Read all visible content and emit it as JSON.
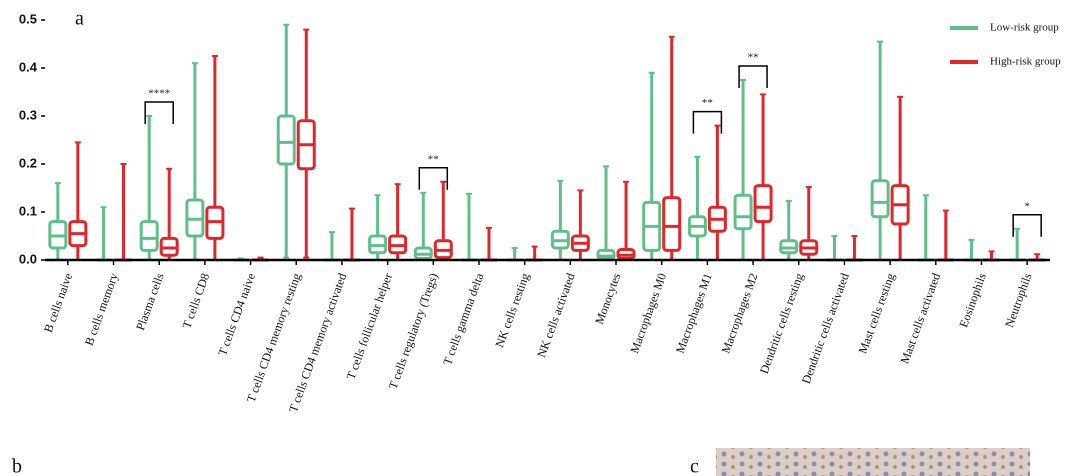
{
  "chart_data": {
    "type": "box",
    "panel_labels": [
      "a",
      "b",
      "c"
    ],
    "categories": [
      "B cells naive",
      "B cells memory",
      "Plasma cells",
      "T cells CD8",
      "T cells CD4 naive",
      "T cells CD4 memory resting",
      "T cells CD4 memory activated",
      "T cells follicular helper",
      "T cells regulatory (Tregs)",
      "T cells gamma delta",
      "NK cells resting",
      "NK cells activated",
      "Monocytes",
      "Macrophages M0",
      "Macrophages M1",
      "Macrophages M2",
      "Dendritic cells resting",
      "Dendritic cells activated",
      "Mast cells resting",
      "Mast cells activated",
      "Eosinophils",
      "Neutrophils"
    ],
    "significance": [
      null,
      null,
      "****",
      null,
      null,
      null,
      null,
      null,
      "**",
      null,
      null,
      null,
      null,
      null,
      "**",
      "**",
      null,
      null,
      null,
      null,
      null,
      "*"
    ],
    "series": [
      {
        "name": "Low-risk group",
        "color": "#5fbf8a",
        "values": [
          [
            0,
            0.025,
            0.05,
            0.08,
            0.16
          ],
          [
            0,
            0,
            0,
            0,
            0.11
          ],
          [
            0,
            0.02,
            0.045,
            0.08,
            0.3
          ],
          [
            0,
            0.05,
            0.085,
            0.125,
            0.41
          ],
          [
            0,
            0,
            0,
            0,
            0.003
          ],
          [
            0.005,
            0.2,
            0.245,
            0.3,
            0.49
          ],
          [
            0,
            0,
            0,
            0,
            0.058
          ],
          [
            0,
            0.015,
            0.03,
            0.05,
            0.135
          ],
          [
            0,
            0.003,
            0.012,
            0.025,
            0.14
          ],
          [
            0,
            0,
            0,
            0,
            0.138
          ],
          [
            0,
            0,
            0,
            0,
            0.025
          ],
          [
            0,
            0.025,
            0.04,
            0.06,
            0.165
          ],
          [
            0,
            0.002,
            0.008,
            0.02,
            0.195
          ],
          [
            0,
            0.02,
            0.07,
            0.12,
            0.39
          ],
          [
            0,
            0.05,
            0.07,
            0.09,
            0.215
          ],
          [
            0,
            0.065,
            0.09,
            0.135,
            0.375
          ],
          [
            0,
            0.015,
            0.025,
            0.04,
            0.123
          ],
          [
            0,
            0,
            0,
            0,
            0.05
          ],
          [
            0,
            0.09,
            0.12,
            0.165,
            0.455
          ],
          [
            0,
            0,
            0,
            0,
            0.135
          ],
          [
            0,
            0,
            0,
            0,
            0.042
          ],
          [
            0,
            0,
            0,
            0,
            0.065
          ]
        ]
      },
      {
        "name": "High-risk group",
        "color": "#e0262b",
        "values": [
          [
            0,
            0.03,
            0.055,
            0.08,
            0.245
          ],
          [
            0,
            0,
            0,
            0,
            0.2
          ],
          [
            0,
            0.01,
            0.025,
            0.045,
            0.19
          ],
          [
            0,
            0.045,
            0.08,
            0.11,
            0.425
          ],
          [
            0,
            0,
            0,
            0,
            0.005
          ],
          [
            0.005,
            0.19,
            0.24,
            0.29,
            0.48
          ],
          [
            0,
            0,
            0,
            0,
            0.107
          ],
          [
            0,
            0.015,
            0.03,
            0.05,
            0.158
          ],
          [
            0,
            0.005,
            0.02,
            0.04,
            0.163
          ],
          [
            0,
            0,
            0,
            0,
            0.067
          ],
          [
            0,
            0,
            0,
            0,
            0.028
          ],
          [
            0,
            0.02,
            0.035,
            0.05,
            0.145
          ],
          [
            0,
            0.003,
            0.01,
            0.022,
            0.163
          ],
          [
            0,
            0.02,
            0.07,
            0.13,
            0.465
          ],
          [
            0,
            0.06,
            0.085,
            0.11,
            0.28
          ],
          [
            0,
            0.08,
            0.11,
            0.155,
            0.345
          ],
          [
            0,
            0.012,
            0.025,
            0.04,
            0.152
          ],
          [
            0,
            0,
            0,
            0,
            0.05
          ],
          [
            0,
            0.075,
            0.115,
            0.155,
            0.34
          ],
          [
            0,
            0,
            0,
            0,
            0.103
          ],
          [
            0,
            0,
            0,
            0,
            0.018
          ],
          [
            0,
            0,
            0,
            0,
            0.012
          ]
        ]
      }
    ],
    "ylim": [
      0,
      0.5
    ],
    "yticks": [
      {
        "value": 0,
        "label": "0.0"
      },
      0.1,
      0.2,
      0.3,
      0.4,
      0.5
    ],
    "legend": "top-right"
  }
}
